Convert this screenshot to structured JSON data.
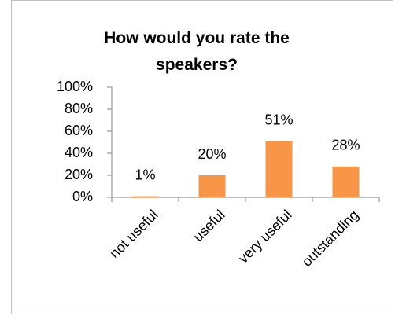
{
  "chart_data": {
    "type": "bar",
    "title": "How would you rate the speakers?",
    "categories": [
      "not useful",
      "useful",
      "very useful",
      "outstanding"
    ],
    "values": [
      1,
      20,
      51,
      28
    ],
    "value_labels": [
      "1%",
      "20%",
      "51%",
      "28%"
    ],
    "color": "#f79646",
    "ylim": [
      0,
      100
    ],
    "yticks": [
      {
        "value": 0,
        "label": "0%"
      },
      {
        "value": 20,
        "label": "20%"
      },
      {
        "value": 40,
        "label": "40%"
      },
      {
        "value": 60,
        "label": "60%"
      },
      {
        "value": 80,
        "label": "80%"
      },
      {
        "value": 100,
        "label": "100%"
      }
    ],
    "grid": false
  }
}
